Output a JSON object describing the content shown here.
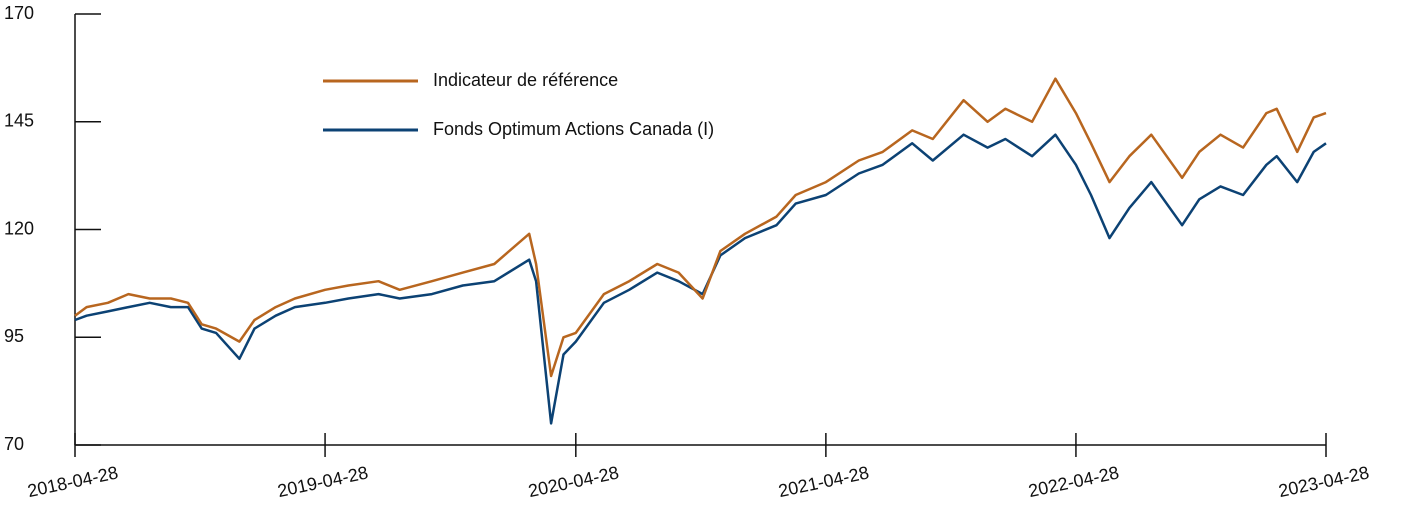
{
  "chart_data": {
    "type": "line",
    "x": [
      "2018-04-28",
      "2018-05-15",
      "2018-06-15",
      "2018-07-15",
      "2018-08-15",
      "2018-09-15",
      "2018-10-10",
      "2018-10-30",
      "2018-11-20",
      "2018-12-24",
      "2019-01-15",
      "2019-02-15",
      "2019-03-15",
      "2019-04-28",
      "2019-06-01",
      "2019-07-15",
      "2019-08-15",
      "2019-10-01",
      "2019-11-15",
      "2019-12-31",
      "2020-02-20",
      "2020-03-01",
      "2020-03-23",
      "2020-04-10",
      "2020-04-28",
      "2020-06-08",
      "2020-07-15",
      "2020-08-25",
      "2020-09-25",
      "2020-10-30",
      "2020-11-25",
      "2020-12-31",
      "2021-02-15",
      "2021-03-15",
      "2021-04-28",
      "2021-06-15",
      "2021-07-20",
      "2021-09-01",
      "2021-10-01",
      "2021-11-15",
      "2021-12-20",
      "2022-01-15",
      "2022-02-23",
      "2022-03-29",
      "2022-04-28",
      "2022-05-20",
      "2022-06-16",
      "2022-07-15",
      "2022-08-16",
      "2022-09-30",
      "2022-10-25",
      "2022-11-25",
      "2022-12-28",
      "2023-01-31",
      "2023-02-15",
      "2023-03-17",
      "2023-04-10",
      "2023-04-28"
    ],
    "series": [
      {
        "name": "Indicateur de référence",
        "color": "#b8661f",
        "values": [
          100,
          102,
          103,
          105,
          104,
          104,
          103,
          98,
          97,
          94,
          99,
          102,
          104,
          106,
          107,
          108,
          106,
          108,
          110,
          112,
          119,
          112,
          86,
          95,
          96,
          105,
          108,
          112,
          110,
          104,
          115,
          119,
          123,
          128,
          131,
          136,
          138,
          143,
          141,
          150,
          145,
          148,
          145,
          155,
          147,
          140,
          131,
          137,
          142,
          132,
          138,
          142,
          139,
          147,
          148,
          138,
          146,
          147
        ]
      },
      {
        "name": "Fonds Optimum Actions Canada (I)",
        "color": "#0c4274",
        "values": [
          99,
          100,
          101,
          102,
          103,
          102,
          102,
          97,
          96,
          90,
          97,
          100,
          102,
          103,
          104,
          105,
          104,
          105,
          107,
          108,
          113,
          108,
          75,
          91,
          94,
          103,
          106,
          110,
          108,
          105,
          114,
          118,
          121,
          126,
          128,
          133,
          135,
          140,
          136,
          142,
          139,
          141,
          137,
          142,
          135,
          128,
          118,
          125,
          131,
          121,
          127,
          130,
          128,
          135,
          137,
          131,
          138,
          140
        ]
      }
    ],
    "xlim": [
      "2018-04-28",
      "2023-04-28"
    ],
    "xticks": [
      "2018-04-28",
      "2019-04-28",
      "2020-04-28",
      "2021-04-28",
      "2022-04-28",
      "2023-04-28"
    ],
    "ylim": [
      70,
      170
    ],
    "yticks": [
      70,
      95,
      120,
      145,
      170
    ],
    "legend": "top-left"
  }
}
